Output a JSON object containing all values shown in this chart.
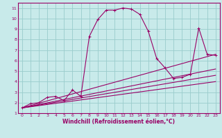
{
  "xlabel": "Windchill (Refroidissement éolien,°C)",
  "bg_color": "#c8eaea",
  "line_color": "#990066",
  "xlim": [
    -0.5,
    23.5
  ],
  "ylim": [
    1,
    11.5
  ],
  "xticks": [
    0,
    1,
    2,
    3,
    4,
    5,
    6,
    7,
    8,
    9,
    10,
    11,
    12,
    13,
    14,
    15,
    16,
    17,
    18,
    19,
    20,
    21,
    22,
    23
  ],
  "yticks": [
    1,
    2,
    3,
    4,
    5,
    6,
    7,
    8,
    9,
    10,
    11
  ],
  "grid_color": "#99cccc",
  "main_line_x": [
    0,
    1,
    2,
    3,
    4,
    5,
    6,
    7,
    8,
    9,
    10,
    11,
    12,
    13,
    14,
    15,
    16,
    17,
    18,
    19,
    20,
    21,
    22,
    23
  ],
  "main_line_y": [
    1.5,
    1.9,
    2.0,
    2.5,
    2.6,
    2.2,
    3.2,
    2.6,
    8.3,
    9.9,
    10.8,
    10.8,
    11.0,
    10.9,
    10.4,
    8.8,
    6.2,
    5.3,
    4.3,
    4.4,
    4.7,
    9.1,
    6.6,
    6.5
  ],
  "ref_lines": [
    {
      "x": [
        0,
        23
      ],
      "y": [
        1.5,
        6.6
      ]
    },
    {
      "x": [
        0,
        23
      ],
      "y": [
        1.5,
        5.2
      ]
    },
    {
      "x": [
        0,
        23
      ],
      "y": [
        1.5,
        4.6
      ]
    },
    {
      "x": [
        0,
        23
      ],
      "y": [
        1.5,
        4.0
      ]
    }
  ],
  "xlabel_fontsize": 5.5,
  "tick_fontsize": 4.5,
  "lw": 0.8
}
